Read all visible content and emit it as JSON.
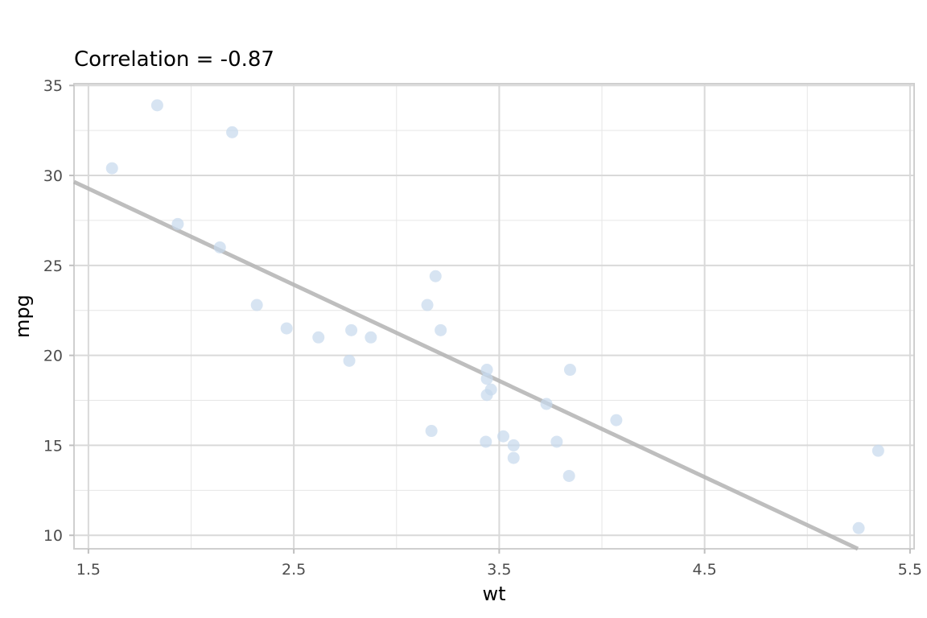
{
  "chart_data": {
    "type": "scatter",
    "title": "Correlation = -0.87",
    "xlabel": "wt",
    "ylabel": "mpg",
    "xlim": [
      1.43,
      5.52
    ],
    "ylim": [
      9.25,
      35.1
    ],
    "x_ticks": [
      1.5,
      2.5,
      3.5,
      4.5,
      5.5
    ],
    "y_ticks": [
      10,
      15,
      20,
      25,
      30,
      35
    ],
    "grid": true,
    "point_color": "#c6d9ec",
    "line_color": "#b3b3b3",
    "fit_line": {
      "intercept": 37.285,
      "slope": -5.344
    },
    "points": [
      {
        "x": 2.62,
        "y": 21.0
      },
      {
        "x": 2.875,
        "y": 21.0
      },
      {
        "x": 2.32,
        "y": 22.8
      },
      {
        "x": 3.215,
        "y": 21.4
      },
      {
        "x": 3.44,
        "y": 18.7
      },
      {
        "x": 3.46,
        "y": 18.1
      },
      {
        "x": 3.57,
        "y": 14.3
      },
      {
        "x": 3.19,
        "y": 24.4
      },
      {
        "x": 3.15,
        "y": 22.8
      },
      {
        "x": 3.44,
        "y": 19.2
      },
      {
        "x": 3.44,
        "y": 17.8
      },
      {
        "x": 4.07,
        "y": 16.4
      },
      {
        "x": 3.73,
        "y": 17.3
      },
      {
        "x": 3.78,
        "y": 15.2
      },
      {
        "x": 5.25,
        "y": 10.4
      },
      {
        "x": 5.345,
        "y": 14.7
      },
      {
        "x": 2.2,
        "y": 32.4
      },
      {
        "x": 1.835,
        "y": 33.9
      },
      {
        "x": 2.465,
        "y": 21.5
      },
      {
        "x": 3.52,
        "y": 15.5
      },
      {
        "x": 3.435,
        "y": 15.2
      },
      {
        "x": 3.84,
        "y": 13.3
      },
      {
        "x": 3.845,
        "y": 19.2
      },
      {
        "x": 1.935,
        "y": 27.3
      },
      {
        "x": 2.14,
        "y": 26.0
      },
      {
        "x": 1.615,
        "y": 30.4
      },
      {
        "x": 3.17,
        "y": 15.8
      },
      {
        "x": 2.77,
        "y": 19.7
      },
      {
        "x": 3.57,
        "y": 15.0
      },
      {
        "x": 2.78,
        "y": 21.4
      }
    ]
  }
}
